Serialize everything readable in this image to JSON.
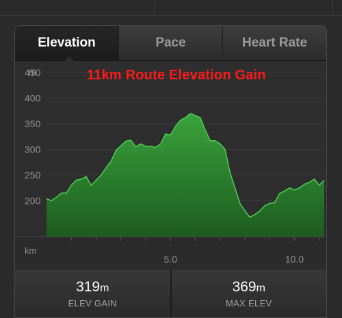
{
  "tabs": [
    {
      "label": "Elevation",
      "active": true
    },
    {
      "label": "Pace",
      "active": false
    },
    {
      "label": "Heart Rate",
      "active": false
    }
  ],
  "chart_title": "11km Route Elevation Gain",
  "chart_data": {
    "type": "area",
    "xlabel": "km",
    "ylabel": "m",
    "xlim": [
      0,
      11.2
    ],
    "ylim": [
      130,
      470
    ],
    "y_ticks": [
      "450",
      "400",
      "350",
      "300",
      "250",
      "200"
    ],
    "x_ticks": [
      "5.0",
      "10.0"
    ],
    "x": [
      0.0,
      0.2,
      0.4,
      0.6,
      0.8,
      1.0,
      1.2,
      1.4,
      1.6,
      1.8,
      2.0,
      2.2,
      2.4,
      2.6,
      2.8,
      3.0,
      3.2,
      3.4,
      3.6,
      3.8,
      4.0,
      4.2,
      4.4,
      4.6,
      4.8,
      5.0,
      5.2,
      5.4,
      5.6,
      5.8,
      6.0,
      6.2,
      6.4,
      6.6,
      6.8,
      7.0,
      7.2,
      7.4,
      7.6,
      7.8,
      8.0,
      8.2,
      8.4,
      8.6,
      8.8,
      9.0,
      9.2,
      9.4,
      9.6,
      9.8,
      10.0,
      10.2,
      10.4,
      10.6,
      10.8,
      11.0,
      11.2
    ],
    "values": [
      204,
      200,
      207,
      215,
      215,
      230,
      240,
      242,
      247,
      230,
      240,
      250,
      264,
      277,
      298,
      307,
      316,
      318,
      305,
      311,
      306,
      306,
      304,
      311,
      330,
      328,
      345,
      357,
      362,
      370,
      366,
      362,
      338,
      317,
      317,
      311,
      300,
      255,
      225,
      195,
      180,
      168,
      173,
      180,
      190,
      195,
      196,
      214,
      219,
      225,
      221,
      225,
      232,
      236,
      242,
      230,
      240
    ],
    "color": "#3fb843"
  },
  "stats": [
    {
      "value": "319",
      "unit": "m",
      "label": "ELEV GAIN"
    },
    {
      "value": "369",
      "unit": "m",
      "label": "MAX ELEV"
    }
  ]
}
